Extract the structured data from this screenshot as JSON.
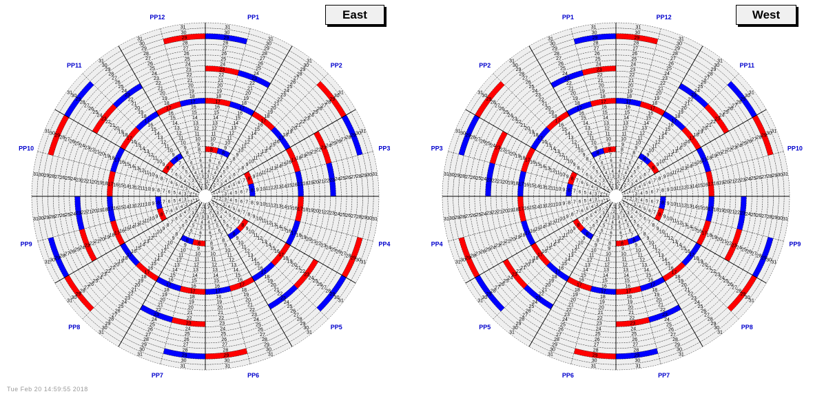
{
  "east": {
    "title": "East",
    "pp_labels": [
      "PP1",
      "PP2",
      "PP3",
      "PP4",
      "PP5",
      "PP6",
      "PP7",
      "PP8",
      "PP9",
      "PP10",
      "PP11",
      "PP12"
    ],
    "pp_directions": "clockwise",
    "first_pp": "PP1"
  },
  "west": {
    "title": "West",
    "pp_labels": [
      "PP12",
      "PP11",
      "PP10",
      "PP9",
      "PP8",
      "PP7",
      "PP6",
      "PP5",
      "PP4",
      "PP3",
      "PP2",
      "PP1"
    ],
    "pp_directions": "clockwise",
    "first_pp": "PP12"
  },
  "rows": [
    1,
    2,
    3,
    4,
    5,
    6,
    7,
    8,
    9,
    10,
    11,
    12,
    13,
    14,
    15,
    16,
    17,
    18,
    19,
    20,
    21,
    22,
    23,
    24,
    25,
    26,
    27,
    28,
    29,
    30,
    31
  ],
  "sectors": 24,
  "colors": {
    "cell": "#efefef",
    "red": "#ff0000",
    "blue": "#0000ff",
    "pp_label": "#0000cc",
    "lines": "#000000"
  },
  "footer": "Tue Feb 20 14:59:55 2018"
}
